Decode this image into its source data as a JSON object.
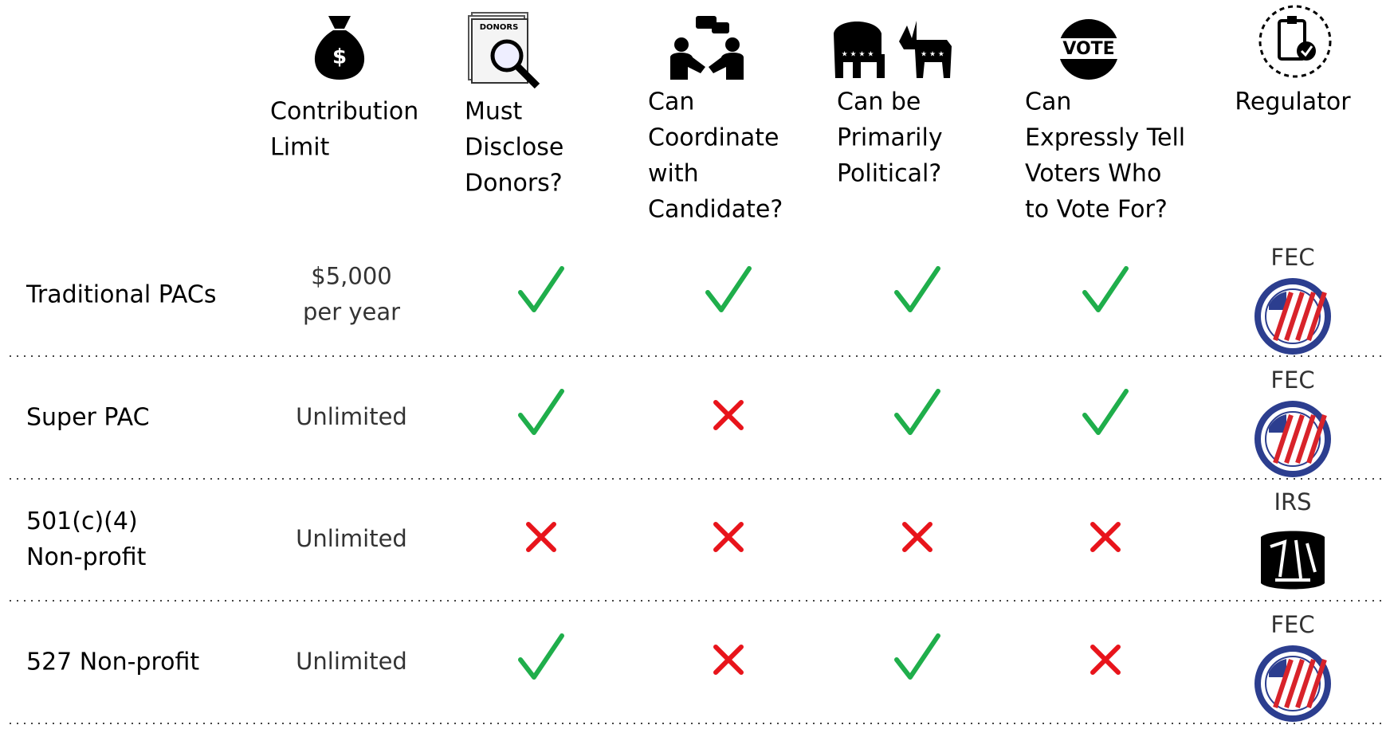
{
  "table": {
    "columns": [
      {
        "header_lines": [
          "Contribution",
          "Limit"
        ]
      },
      {
        "header_lines": [
          "Must",
          "Disclose",
          "Donors?"
        ]
      },
      {
        "header_lines": [
          "Can",
          "Coordinate",
          "with",
          "Candidate?"
        ]
      },
      {
        "header_lines": [
          "Can be",
          "Primarily",
          "Political?"
        ]
      },
      {
        "header_lines": [
          "Can",
          "Expressly Tell",
          "Voters Who",
          "to Vote For?"
        ]
      },
      {
        "header_lines": [
          "Regulator"
        ]
      }
    ],
    "rows": [
      {
        "name_lines": [
          "Traditional PACs"
        ],
        "limit_lines": [
          "$5,000",
          "per year"
        ],
        "answers": [
          true,
          true,
          true,
          true
        ],
        "regulator": "FEC"
      },
      {
        "name_lines": [
          "Super PAC"
        ],
        "limit_lines": [
          "Unlimited"
        ],
        "answers": [
          true,
          false,
          true,
          true
        ],
        "regulator": "FEC"
      },
      {
        "name_lines": [
          "501(c)(4)",
          "Non-profit"
        ],
        "limit_lines": [
          "Unlimited"
        ],
        "answers": [
          false,
          false,
          false,
          false
        ],
        "regulator": "IRS"
      },
      {
        "name_lines": [
          "527 Non-profit"
        ],
        "limit_lines": [
          "Unlimited"
        ],
        "answers": [
          true,
          false,
          true,
          false
        ],
        "regulator": "FEC"
      }
    ]
  }
}
